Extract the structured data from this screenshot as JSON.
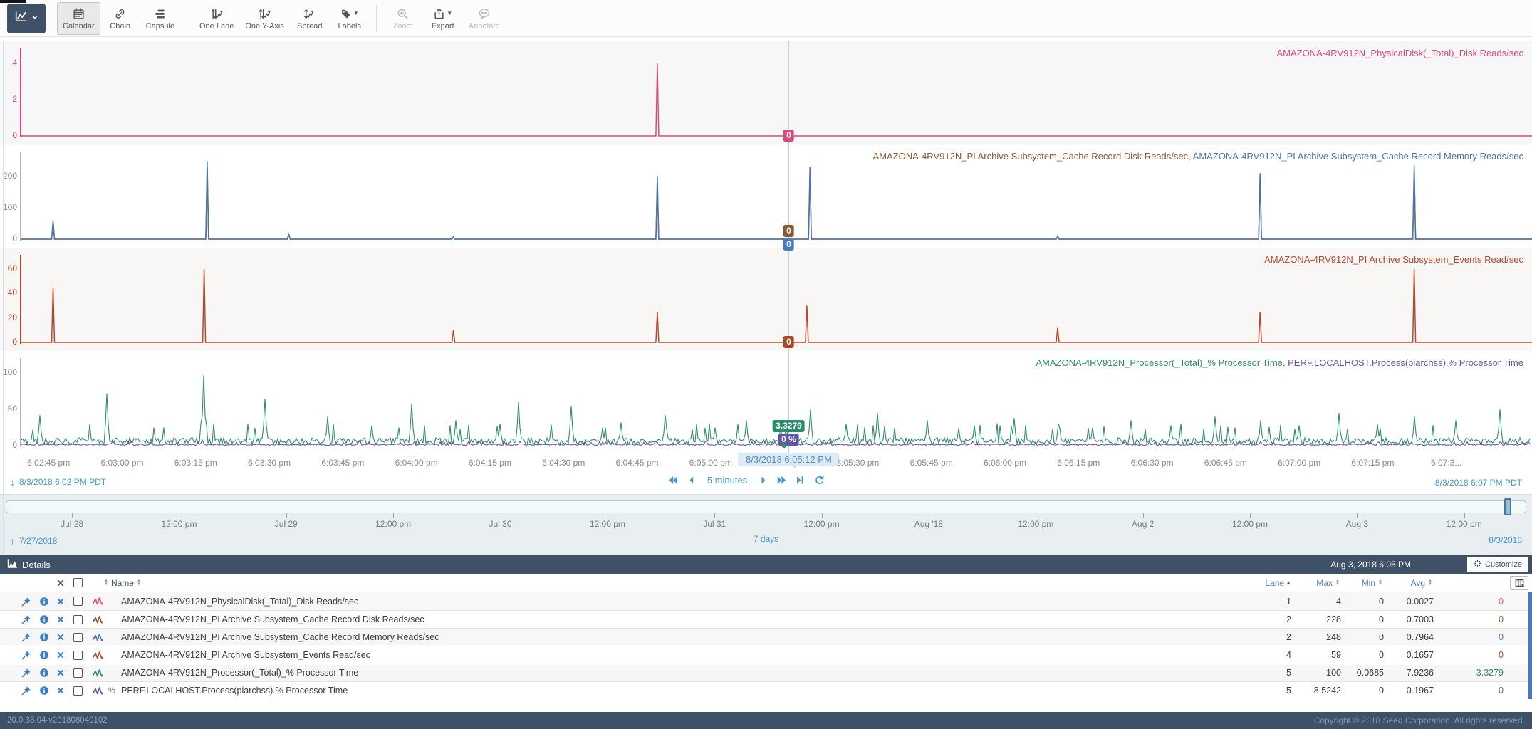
{
  "toolbar": {
    "view_selector": {
      "icon": "trend-icon"
    },
    "buttons": [
      {
        "id": "calendar",
        "label": "Calendar",
        "icon": "calendar",
        "active": true
      },
      {
        "id": "chain",
        "label": "Chain",
        "icon": "chain"
      },
      {
        "id": "capsule",
        "label": "Capsule",
        "icon": "capsule"
      },
      {
        "type": "separator"
      },
      {
        "id": "one-lane",
        "label": "One Lane",
        "icon": "onelane"
      },
      {
        "id": "one-y-axis",
        "label": "One Y-Axis",
        "icon": "oneyaxis"
      },
      {
        "id": "spread",
        "label": "Spread",
        "icon": "spread"
      },
      {
        "id": "labels",
        "label": "Labels",
        "icon": "tag",
        "caret": true
      },
      {
        "type": "separator"
      },
      {
        "id": "zoom",
        "label": "Zoom",
        "icon": "zoom",
        "disabled": true
      },
      {
        "id": "export",
        "label": "Export",
        "icon": "export",
        "caret": true
      },
      {
        "id": "annotate",
        "label": "Annotate",
        "icon": "annotate",
        "disabled": true
      }
    ]
  },
  "chart_data": [
    {
      "type": "line",
      "lane": 1,
      "bg": "#f7f7f7",
      "y_max": 4.6,
      "axis_color": "#d9487f",
      "tick_color": "#d9487f",
      "y_ticks": [
        {
          "v": 4,
          "label": "4"
        },
        {
          "v": 2,
          "label": "2"
        },
        {
          "v": 0,
          "label": "0"
        }
      ],
      "labels": [
        {
          "text": "AMAZONA-4RV912N_PhysicalDisk(_Total)_Disk Reads/sec",
          "color": "#d9487f"
        }
      ],
      "series": [
        {
          "name": "AMAZONA-4RV912N_PhysicalDisk(_Total)_Disk Reads/sec",
          "color": "#d9487f",
          "spikes": [
            [
              0.421,
              4.0
            ]
          ]
        }
      ]
    },
    {
      "type": "line",
      "lane": 2,
      "bg": "#ffffff",
      "y_max": 265,
      "axis_color": "#b5b5b5",
      "tick_color": "#8a8a8a",
      "y_ticks": [
        {
          "v": 200,
          "label": "200"
        },
        {
          "v": 100,
          "label": "100"
        },
        {
          "v": 0,
          "label": "0"
        }
      ],
      "labels": [
        {
          "text": "AMAZONA-4RV912N_PI Archive Subsystem_Cache Record Disk Reads/sec",
          "color": "#8a5a33"
        },
        {
          "text": "AMAZONA-4RV912N_PI Archive Subsystem_Cache Record Memory Reads/sec",
          "color": "#4a74ad"
        }
      ],
      "series": [
        {
          "name": "AMAZONA-4RV912N_PI Archive Subsystem_Cache Record Disk Reads/sec",
          "color": "#8a5a33",
          "spikes": [
            [
              0.021,
              55
            ],
            [
              0.123,
              225
            ],
            [
              0.177,
              15
            ],
            [
              0.286,
              7
            ],
            [
              0.421,
              185
            ],
            [
              0.522,
              210
            ],
            [
              0.686,
              9
            ],
            [
              0.82,
              195
            ],
            [
              0.922,
              215
            ]
          ]
        },
        {
          "name": "AMAZONA-4RV912N_PI Archive Subsystem_Cache Record Memory Reads/sec",
          "color": "#4a74ad",
          "spikes": [
            [
              0.021,
              60
            ],
            [
              0.123,
              248
            ],
            [
              0.177,
              18
            ],
            [
              0.286,
              8
            ],
            [
              0.421,
              200
            ],
            [
              0.522,
              230
            ],
            [
              0.686,
              10
            ],
            [
              0.82,
              210
            ],
            [
              0.922,
              235
            ]
          ]
        }
      ]
    },
    {
      "type": "line",
      "lane": 4,
      "bg": "#f9f7f6",
      "y_max": 68,
      "axis_color": "#b5492c",
      "tick_color": "#b5492c",
      "y_ticks": [
        {
          "v": 60,
          "label": "60"
        },
        {
          "v": 40,
          "label": "40"
        },
        {
          "v": 20,
          "label": "20"
        },
        {
          "v": 0,
          "label": "0"
        }
      ],
      "labels": [
        {
          "text": "AMAZONA-4RV912N_PI Archive Subsystem_Events Read/sec",
          "color": "#b5492c"
        }
      ],
      "series": [
        {
          "name": "AMAZONA-4RV912N_PI Archive Subsystem_Events Read/sec",
          "color": "#b5492c",
          "spikes": [
            [
              0.021,
              45
            ],
            [
              0.121,
              60
            ],
            [
              0.286,
              10
            ],
            [
              0.421,
              25
            ],
            [
              0.52,
              30
            ],
            [
              0.686,
              12
            ],
            [
              0.82,
              25
            ],
            [
              0.922,
              60
            ]
          ]
        }
      ]
    },
    {
      "type": "line",
      "lane": 5,
      "bg": "#ffffff",
      "y_max": 115,
      "axis_color": "#b5b5b5",
      "tick_color": "#8a8a8a",
      "y_ticks": [
        {
          "v": 100,
          "label": "100"
        },
        {
          "v": 50,
          "label": "50"
        },
        {
          "v": 0,
          "label": "0"
        }
      ],
      "labels": [
        {
          "text": "AMAZONA-4RV912N_Processor(_Total)_% Processor Time",
          "color": "#2e8b6e"
        },
        {
          "text": "PERF.LOCALHOST.Process(piarchss).% Processor Time",
          "color": "#6257a5"
        }
      ],
      "series": [
        {
          "name": "AMAZONA-4RV912N_Processor(_Total)_% Processor Time",
          "color": "#2e8b6e",
          "noise": {
            "base": 2,
            "amp": 9,
            "seed": 11
          },
          "spikes": [
            [
              0.012,
              42
            ],
            [
              0.057,
              72
            ],
            [
              0.121,
              97
            ],
            [
              0.161,
              65
            ],
            [
              0.203,
              40
            ],
            [
              0.232,
              28
            ],
            [
              0.258,
              58
            ],
            [
              0.288,
              35
            ],
            [
              0.317,
              30
            ],
            [
              0.329,
              60
            ],
            [
              0.364,
              55
            ],
            [
              0.385,
              25
            ],
            [
              0.397,
              32
            ],
            [
              0.426,
              42
            ],
            [
              0.459,
              25
            ],
            [
              0.48,
              35
            ],
            [
              0.506,
              28
            ],
            [
              0.522,
              50
            ],
            [
              0.546,
              30
            ],
            [
              0.567,
              45
            ],
            [
              0.6,
              35
            ],
            [
              0.631,
              28
            ],
            [
              0.657,
              38
            ],
            [
              0.686,
              30
            ],
            [
              0.709,
              25
            ],
            [
              0.735,
              35
            ],
            [
              0.761,
              28
            ],
            [
              0.79,
              40
            ],
            [
              0.82,
              35
            ],
            [
              0.846,
              28
            ],
            [
              0.872,
              45
            ],
            [
              0.898,
              30
            ],
            [
              0.922,
              40
            ],
            [
              0.95,
              35
            ],
            [
              0.979,
              50
            ]
          ]
        },
        {
          "name": "PERF.LOCALHOST.Process(piarchss).% Processor Time",
          "color": "#6257a5",
          "noise": {
            "base": 0.5,
            "amp": 1.8,
            "seed": 5
          },
          "spikes": [
            [
              0.06,
              6
            ],
            [
              0.12,
              8
            ],
            [
              0.23,
              5
            ],
            [
              0.33,
              6
            ],
            [
              0.42,
              5
            ],
            [
              0.52,
              4
            ],
            [
              0.63,
              6
            ],
            [
              0.73,
              5
            ],
            [
              0.82,
              6
            ],
            [
              0.92,
              5
            ]
          ]
        }
      ]
    }
  ],
  "cursor": {
    "x": 0.508,
    "time": "8/3/2018 6:05:12 PM",
    "badges": [
      {
        "lane": 0,
        "text": "0",
        "color": "#d9487f",
        "dy": -9
      },
      {
        "lane": 1,
        "text": "0",
        "color": "#8a5a33",
        "dy": -20
      },
      {
        "lane": 1,
        "text": "0",
        "color": "#4a7cc2",
        "dy": -1
      },
      {
        "lane": 2,
        "text": "0",
        "color": "#a8482a",
        "dy": -9
      },
      {
        "lane": 3,
        "text": "3.3279",
        "color": "#2e8b6e",
        "dy": -36
      },
      {
        "lane": 3,
        "text": "0 %",
        "color": "#6257a5",
        "dy": -17
      },
      {
        "lane": 3,
        "dot": true,
        "color": "#2e8b6e",
        "dy": -4
      }
    ]
  },
  "x_axis": {
    "ticks": [
      {
        "label": "6:02:45 pm",
        "x": 0.018
      },
      {
        "label": "6:03:00 pm",
        "x": 0.0667
      },
      {
        "label": "6:03:15 pm",
        "x": 0.1154
      },
      {
        "label": "6:03:30 pm",
        "x": 0.1641
      },
      {
        "label": "6:03:45 pm",
        "x": 0.2128
      },
      {
        "label": "6:04:00 pm",
        "x": 0.2615
      },
      {
        "label": "6:04:15 pm",
        "x": 0.3102
      },
      {
        "label": "6:04:30 pm",
        "x": 0.3589
      },
      {
        "label": "6:04:45 pm",
        "x": 0.4076
      },
      {
        "label": "6:05:00 pm",
        "x": 0.4563
      },
      {
        "label": "6:05:15 pm",
        "x": 0.505
      },
      {
        "label": "6:05:30 pm",
        "x": 0.5537
      },
      {
        "label": "6:05:45 pm",
        "x": 0.6024
      },
      {
        "label": "6:06:00 pm",
        "x": 0.6511
      },
      {
        "label": "6:06:15 pm",
        "x": 0.6998
      },
      {
        "label": "6:06:30 pm",
        "x": 0.7485
      },
      {
        "label": "6:06:45 pm",
        "x": 0.7972
      },
      {
        "label": "6:07:00 pm",
        "x": 0.8459
      },
      {
        "label": "6:07:15 pm",
        "x": 0.8946
      },
      {
        "label": "6:07:3...",
        "x": 0.9433
      }
    ]
  },
  "time_range": {
    "start": "8/3/2018 6:02 PM PDT",
    "end": "8/3/2018 6:07 PM PDT",
    "duration": "5 minutes"
  },
  "overview": {
    "start": "7/27/2018",
    "end": "8/3/2018",
    "duration": "7 days",
    "handle_x": 0.982,
    "ticks": [
      {
        "label": "Jul 28",
        "x": 0.047
      },
      {
        "label": "12:00 pm",
        "x": 0.1169
      },
      {
        "label": "Jul 29",
        "x": 0.1868
      },
      {
        "label": "12:00 pm",
        "x": 0.2567
      },
      {
        "label": "Jul 30",
        "x": 0.3266
      },
      {
        "label": "12:00 pm",
        "x": 0.3965
      },
      {
        "label": "Jul 31",
        "x": 0.4664
      },
      {
        "label": "12:00 pm",
        "x": 0.5363
      },
      {
        "label": "Aug '18",
        "x": 0.6062
      },
      {
        "label": "12:00 pm",
        "x": 0.6761
      },
      {
        "label": "Aug 2",
        "x": 0.746
      },
      {
        "label": "12:00 pm",
        "x": 0.8159
      },
      {
        "label": "Aug 3",
        "x": 0.8858
      },
      {
        "label": "12:00 pm",
        "x": 0.9557
      }
    ]
  },
  "details": {
    "title": "Details",
    "timestamp": "Aug 3, 2018 6:05 PM",
    "customize_label": "Customize",
    "columns": {
      "name": "Name",
      "lane": "Lane",
      "max": "Max",
      "min": "Min",
      "avg": "Avg"
    },
    "rows": [
      {
        "name": "AMAZONA-4RV912N_PhysicalDisk(_Total)_Disk Reads/sec",
        "unit": "",
        "color": "#d9487f",
        "lane": "1",
        "max": "4",
        "min": "0",
        "avg": "0.0027",
        "value": "0"
      },
      {
        "name": "AMAZONA-4RV912N_PI Archive Subsystem_Cache Record Disk Reads/sec",
        "unit": "",
        "color": "#8a5a33",
        "lane": "2",
        "max": "228",
        "min": "0",
        "avg": "0.7003",
        "value": "0"
      },
      {
        "name": "AMAZONA-4RV912N_PI Archive Subsystem_Cache Record Memory Reads/sec",
        "unit": "",
        "color": "#4a74ad",
        "lane": "2",
        "max": "248",
        "min": "0",
        "avg": "0.7964",
        "value": "0"
      },
      {
        "name": "AMAZONA-4RV912N_PI Archive Subsystem_Events Read/sec",
        "unit": "",
        "color": "#b5492c",
        "lane": "4",
        "max": "59",
        "min": "0",
        "avg": "0.1657",
        "value": "0"
      },
      {
        "name": "AMAZONA-4RV912N_Processor(_Total)_% Processor Time",
        "unit": "",
        "color": "#2e8b6e",
        "lane": "5",
        "max": "100",
        "min": "0.0685",
        "avg": "7.9236",
        "value": "3.3279"
      },
      {
        "name": "PERF.LOCALHOST.Process(piarchss).% Processor Time",
        "unit": "%",
        "color": "#6257a5",
        "lane": "5",
        "max": "8.5242",
        "min": "0",
        "avg": "0.1967",
        "value": "0"
      }
    ]
  },
  "footer": {
    "version": "20.0.38.04-v201808040102",
    "copyright": "Copyright © 2018 Seeq Corporation. All rights reserved."
  }
}
